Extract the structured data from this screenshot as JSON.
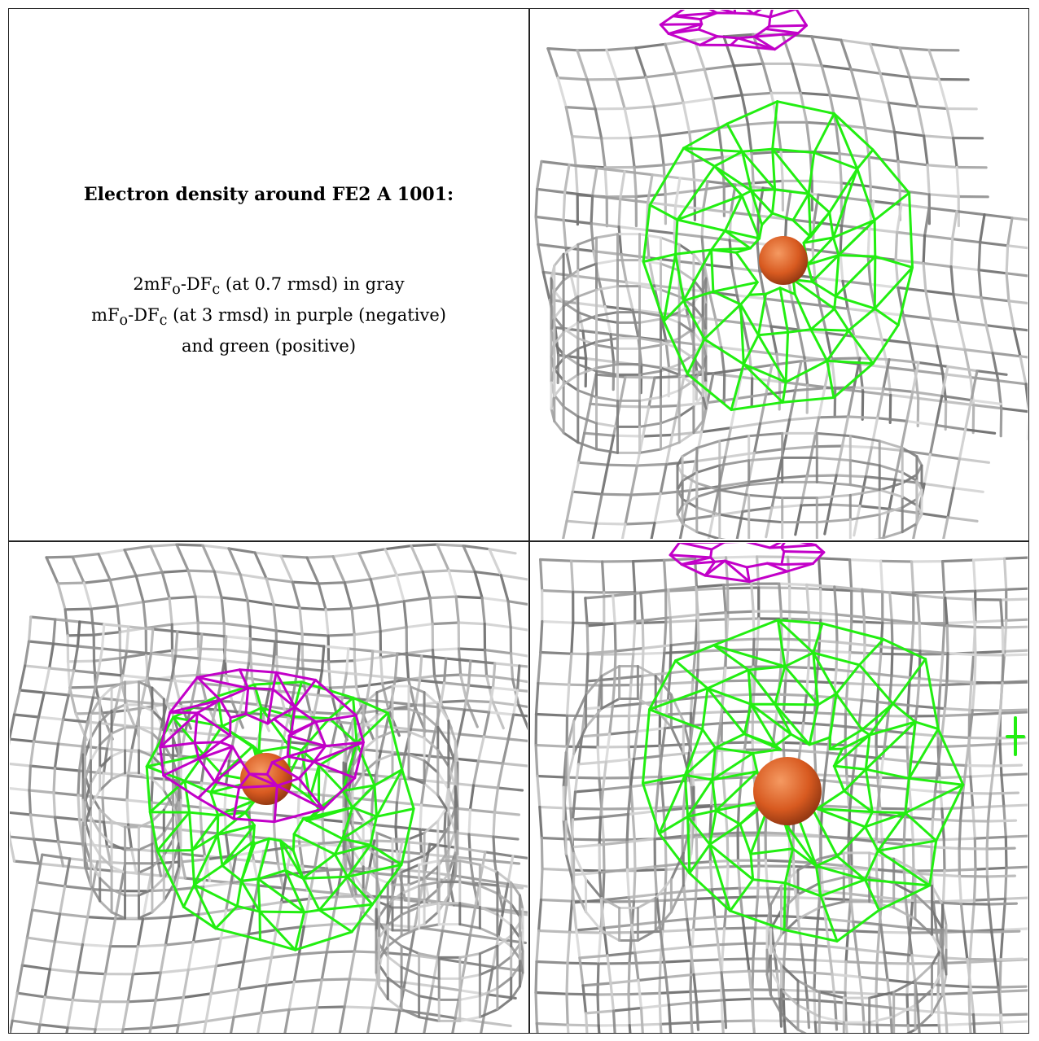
{
  "caption": {
    "title": "Electron density around FE2 A 1001:",
    "map_2fofc": {
      "lead": "2mF",
      "sub_o": "o",
      "mid": "-DF",
      "sub_c": "c",
      "tail": " (at 0.7 rmsd) in gray"
    },
    "map_fofc": {
      "lead": "mF",
      "sub_o": "o",
      "mid": "-DF",
      "sub_c": "c",
      "tail": " (at 3 rmsd) in purple (negative)"
    },
    "map_fofc_tail": "and green (positive)"
  },
  "colors": {
    "mesh_2fofc": "#b4b4b4",
    "mesh_negative": "#c200c8",
    "mesh_positive": "#22ee11",
    "atom_fe": "#e0642a"
  },
  "views": [
    "view-1",
    "view-2",
    "view-3"
  ]
}
